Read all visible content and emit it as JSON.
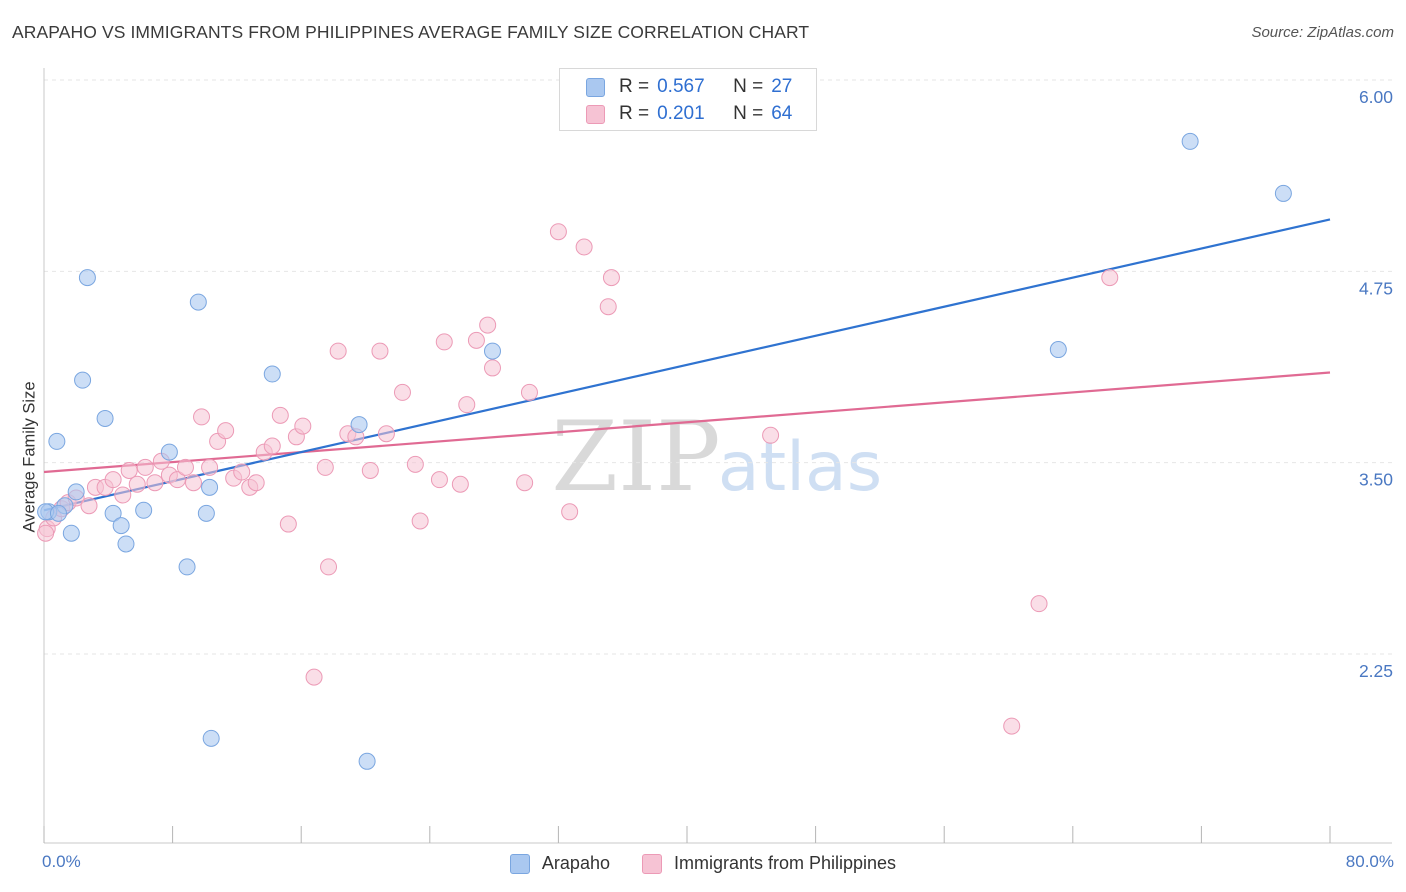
{
  "title": "ARAPAHO VS IMMIGRANTS FROM PHILIPPINES AVERAGE FAMILY SIZE CORRELATION CHART",
  "source": "Source: ZipAtlas.com",
  "watermark": {
    "zip": "ZIP",
    "atlas": "atlas"
  },
  "stats": {
    "rows": [
      {
        "r_label": "R =",
        "r_value": "0.567",
        "n_label": "N =",
        "n_value": "27"
      },
      {
        "r_label": "R =",
        "r_value": "0.201",
        "n_label": "N =",
        "n_value": "64"
      }
    ]
  },
  "legend": {
    "items": [
      "Arapaho",
      "Immigrants from Philippines"
    ]
  },
  "colors": {
    "arapaho_fill": "#aac8f0",
    "arapaho_stroke": "#7aa6e0",
    "arapaho_line": "#2f73d0",
    "phil_fill": "#f6c3d4",
    "phil_stroke": "#ec9ab6",
    "phil_line": "#e06a93",
    "tick_label": "#4a78c2",
    "grid": "#e6e6e6"
  },
  "chart_data": {
    "type": "scatter",
    "title": "ARAPAHO VS IMMIGRANTS FROM PHILIPPINES AVERAGE FAMILY SIZE CORRELATION CHART",
    "xlabel": "",
    "ylabel": "Average Family Size",
    "x_unit": "percent",
    "xlim": [
      0,
      80
    ],
    "ylim": [
      1.2,
      6.2
    ],
    "x_tick_labels": [
      "0.0%",
      "80.0%"
    ],
    "y_ticks": [
      2.25,
      3.5,
      4.75,
      6.0
    ],
    "y_tick_labels": [
      "2.25",
      "3.50",
      "4.75",
      "6.00"
    ],
    "grid": true,
    "legend_position": "bottom-center",
    "series": [
      {
        "name": "Arapaho",
        "r": 0.567,
        "n": 27,
        "trend": {
          "x": [
            0,
            80
          ],
          "y": [
            3.3,
            5.2
          ]
        },
        "points": [
          {
            "x": 0.3,
            "y": 3.29
          },
          {
            "x": 0.8,
            "y": 3.75
          },
          {
            "x": 1.3,
            "y": 3.33
          },
          {
            "x": 1.7,
            "y": 3.15
          },
          {
            "x": 2.0,
            "y": 3.42
          },
          {
            "x": 2.4,
            "y": 4.15
          },
          {
            "x": 2.7,
            "y": 4.82
          },
          {
            "x": 3.8,
            "y": 3.9
          },
          {
            "x": 4.3,
            "y": 3.28
          },
          {
            "x": 4.8,
            "y": 3.2
          },
          {
            "x": 5.1,
            "y": 3.08
          },
          {
            "x": 6.2,
            "y": 3.3
          },
          {
            "x": 7.8,
            "y": 3.68
          },
          {
            "x": 8.9,
            "y": 2.93
          },
          {
            "x": 9.6,
            "y": 4.66
          },
          {
            "x": 10.1,
            "y": 3.28
          },
          {
            "x": 10.3,
            "y": 3.45
          },
          {
            "x": 10.4,
            "y": 1.81
          },
          {
            "x": 14.2,
            "y": 4.19
          },
          {
            "x": 19.6,
            "y": 3.86
          },
          {
            "x": 20.1,
            "y": 1.66
          },
          {
            "x": 27.9,
            "y": 4.34
          },
          {
            "x": 63.1,
            "y": 4.35
          },
          {
            "x": 71.3,
            "y": 5.71
          },
          {
            "x": 77.1,
            "y": 5.37
          },
          {
            "x": 0.1,
            "y": 3.29
          },
          {
            "x": 0.9,
            "y": 3.28
          }
        ]
      },
      {
        "name": "Immigrants from Philippines",
        "r": 0.201,
        "n": 64,
        "trend": {
          "x": [
            0,
            80
          ],
          "y": [
            3.55,
            4.2
          ]
        },
        "points": [
          {
            "x": 0.2,
            "y": 3.18
          },
          {
            "x": 0.6,
            "y": 3.25
          },
          {
            "x": 1.1,
            "y": 3.31
          },
          {
            "x": 1.5,
            "y": 3.35
          },
          {
            "x": 2.0,
            "y": 3.38
          },
          {
            "x": 2.8,
            "y": 3.33
          },
          {
            "x": 3.2,
            "y": 3.45
          },
          {
            "x": 3.8,
            "y": 3.45
          },
          {
            "x": 4.3,
            "y": 3.5
          },
          {
            "x": 4.9,
            "y": 3.4
          },
          {
            "x": 5.3,
            "y": 3.56
          },
          {
            "x": 5.8,
            "y": 3.47
          },
          {
            "x": 6.3,
            "y": 3.58
          },
          {
            "x": 6.9,
            "y": 3.48
          },
          {
            "x": 7.3,
            "y": 3.62
          },
          {
            "x": 7.8,
            "y": 3.53
          },
          {
            "x": 8.3,
            "y": 3.5
          },
          {
            "x": 8.8,
            "y": 3.58
          },
          {
            "x": 9.3,
            "y": 3.48
          },
          {
            "x": 9.8,
            "y": 3.91
          },
          {
            "x": 10.3,
            "y": 3.58
          },
          {
            "x": 10.8,
            "y": 3.75
          },
          {
            "x": 11.3,
            "y": 3.82
          },
          {
            "x": 11.8,
            "y": 3.51
          },
          {
            "x": 12.3,
            "y": 3.55
          },
          {
            "x": 12.8,
            "y": 3.45
          },
          {
            "x": 13.2,
            "y": 3.48
          },
          {
            "x": 13.7,
            "y": 3.68
          },
          {
            "x": 14.2,
            "y": 3.72
          },
          {
            "x": 14.7,
            "y": 3.92
          },
          {
            "x": 15.2,
            "y": 3.21
          },
          {
            "x": 15.7,
            "y": 3.78
          },
          {
            "x": 16.1,
            "y": 3.85
          },
          {
            "x": 16.8,
            "y": 2.21
          },
          {
            "x": 17.5,
            "y": 3.58
          },
          {
            "x": 17.7,
            "y": 2.93
          },
          {
            "x": 18.3,
            "y": 4.34
          },
          {
            "x": 18.9,
            "y": 3.8
          },
          {
            "x": 19.4,
            "y": 3.78
          },
          {
            "x": 20.3,
            "y": 3.56
          },
          {
            "x": 20.9,
            "y": 4.34
          },
          {
            "x": 21.3,
            "y": 3.8
          },
          {
            "x": 22.3,
            "y": 4.07
          },
          {
            "x": 23.1,
            "y": 3.6
          },
          {
            "x": 23.4,
            "y": 3.23
          },
          {
            "x": 24.6,
            "y": 3.5
          },
          {
            "x": 24.9,
            "y": 4.4
          },
          {
            "x": 25.9,
            "y": 3.47
          },
          {
            "x": 26.3,
            "y": 3.99
          },
          {
            "x": 26.9,
            "y": 4.41
          },
          {
            "x": 27.6,
            "y": 4.51
          },
          {
            "x": 27.9,
            "y": 4.23
          },
          {
            "x": 29.9,
            "y": 3.48
          },
          {
            "x": 30.2,
            "y": 4.07
          },
          {
            "x": 32.0,
            "y": 5.12
          },
          {
            "x": 32.7,
            "y": 3.29
          },
          {
            "x": 33.6,
            "y": 5.02
          },
          {
            "x": 35.1,
            "y": 4.63
          },
          {
            "x": 35.3,
            "y": 4.82
          },
          {
            "x": 45.2,
            "y": 3.79
          },
          {
            "x": 61.9,
            "y": 2.69
          },
          {
            "x": 66.3,
            "y": 4.82
          },
          {
            "x": 60.2,
            "y": 1.89
          },
          {
            "x": 0.1,
            "y": 3.15
          }
        ]
      }
    ]
  }
}
